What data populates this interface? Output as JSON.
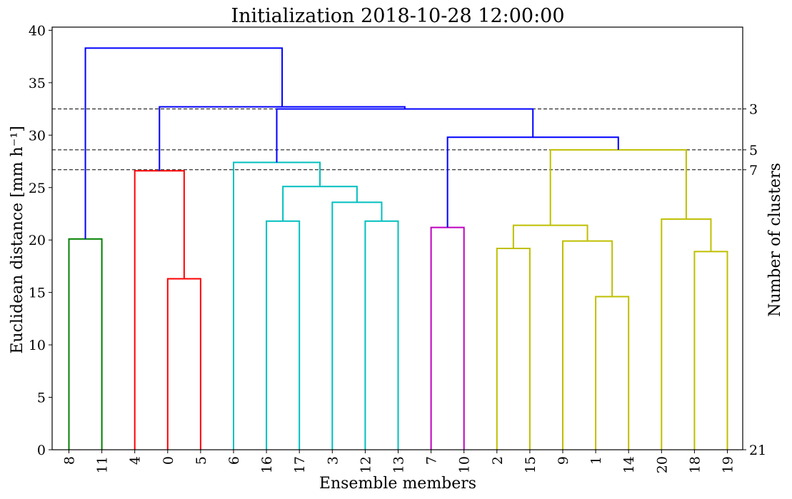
{
  "chart_data": {
    "type": "dendrogram",
    "title": "Initialization 2018-10-28 12:00:00",
    "xlabel": "Ensemble members",
    "ylabel": "Euclidean distance [mm h⁻¹]",
    "y2label": "Number of clusters",
    "ylim": [
      0,
      40.3
    ],
    "yticks": [
      0,
      5,
      10,
      15,
      20,
      25,
      30,
      35,
      40
    ],
    "grid": false,
    "leaf_order": [
      "8",
      "11",
      "4",
      "0",
      "5",
      "6",
      "16",
      "17",
      "3",
      "12",
      "13",
      "7",
      "10",
      "2",
      "15",
      "9",
      "1",
      "14",
      "20",
      "18",
      "19"
    ],
    "colors": {
      "green": "#008000",
      "red": "#ff0000",
      "cyan": "#00bfbf",
      "magenta": "#bf00bf",
      "yellow": "#bfbf00",
      "blue": "#0000ff"
    },
    "merges": [
      {
        "left": "leaf:0",
        "right": "leaf:1",
        "height": 20.1,
        "color": "green"
      },
      {
        "left": "leaf:3",
        "right": "leaf:4",
        "height": 16.3,
        "color": "red"
      },
      {
        "left": "leaf:2",
        "right": "node:1",
        "height": 26.6,
        "color": "red"
      },
      {
        "left": "leaf:6",
        "right": "leaf:7",
        "height": 21.8,
        "color": "cyan"
      },
      {
        "left": "leaf:9",
        "right": "leaf:10",
        "height": 21.8,
        "color": "cyan"
      },
      {
        "left": "leaf:8",
        "right": "node:4",
        "height": 23.6,
        "color": "cyan"
      },
      {
        "left": "node:3",
        "right": "node:5",
        "height": 25.1,
        "color": "cyan"
      },
      {
        "left": "leaf:5",
        "right": "node:6",
        "height": 27.4,
        "color": "cyan"
      },
      {
        "left": "leaf:11",
        "right": "leaf:12",
        "height": 21.2,
        "color": "magenta"
      },
      {
        "left": "leaf:13",
        "right": "leaf:14",
        "height": 19.2,
        "color": "yellow"
      },
      {
        "left": "leaf:16",
        "right": "leaf:17",
        "height": 14.6,
        "color": "yellow"
      },
      {
        "left": "leaf:15",
        "right": "node:10",
        "height": 19.9,
        "color": "yellow"
      },
      {
        "left": "node:9",
        "right": "node:11",
        "height": 21.4,
        "color": "yellow"
      },
      {
        "left": "leaf:19",
        "right": "leaf:20",
        "height": 18.9,
        "color": "yellow"
      },
      {
        "left": "leaf:18",
        "right": "node:13",
        "height": 22.0,
        "color": "yellow"
      },
      {
        "left": "node:12",
        "right": "node:14",
        "height": 28.6,
        "color": "yellow"
      },
      {
        "left": "node:8",
        "right": "node:15",
        "height": 29.8,
        "color": "blue"
      },
      {
        "left": "node:7",
        "right": "node:16",
        "height": 32.5,
        "color": "blue"
      },
      {
        "left": "node:2",
        "right": "node:17",
        "height": 32.7,
        "color": "blue"
      },
      {
        "left": "node:0",
        "right": "node:18",
        "height": 38.3,
        "color": "blue"
      }
    ],
    "cut_lines": [
      {
        "height": 32.5,
        "label": "3"
      },
      {
        "height": 28.6,
        "label": "5"
      },
      {
        "height": 26.7,
        "label": "7"
      },
      {
        "height": 0,
        "label": "21"
      }
    ]
  }
}
